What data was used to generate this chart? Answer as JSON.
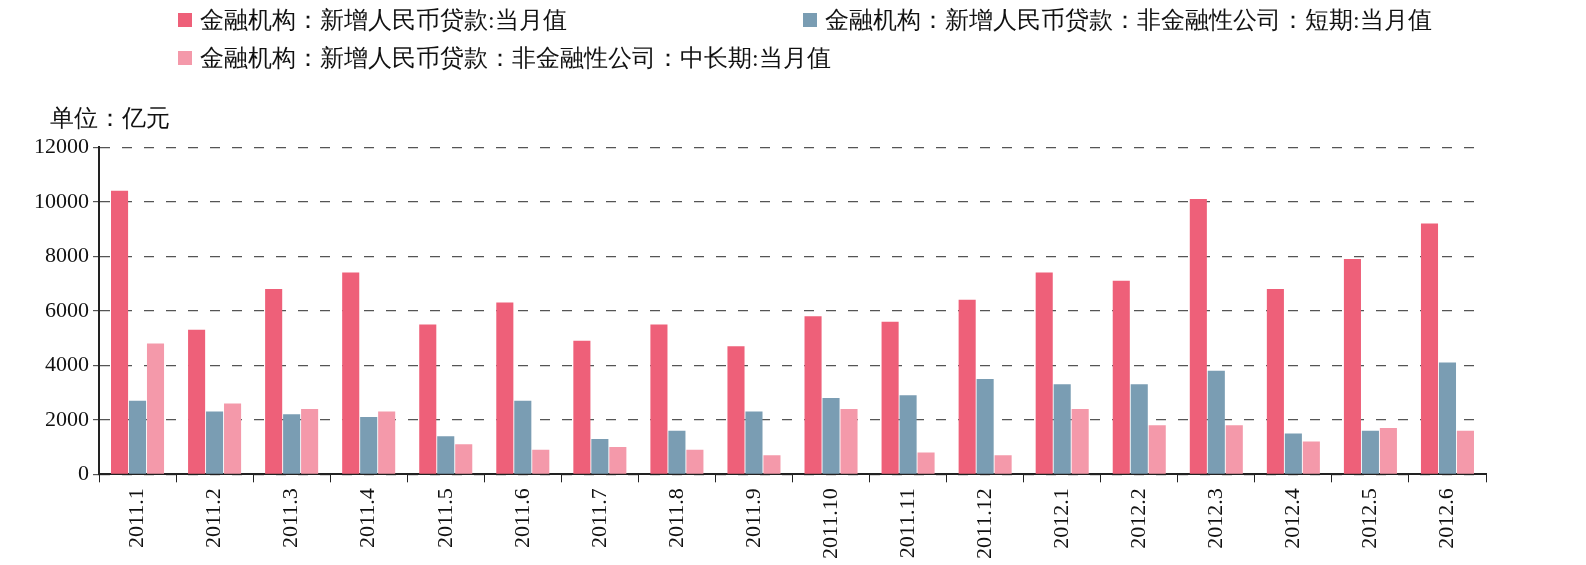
{
  "chart_data": {
    "type": "bar",
    "ylabel": "单位：亿元",
    "categories": [
      "2011.1",
      "2011.2",
      "2011.3",
      "2011.4",
      "2011.5",
      "2011.6",
      "2011.7",
      "2011.8",
      "2011.9",
      "2011.10",
      "2011.11",
      "2011.12",
      "2012.1",
      "2012.2",
      "2012.3",
      "2012.4",
      "2012.5",
      "2012.6"
    ],
    "series": [
      {
        "name": "金融机构：新增人民币贷款:当月值",
        "color": "#ee6079",
        "values": [
          10400,
          5300,
          6800,
          7400,
          5500,
          6300,
          4900,
          5500,
          4700,
          5800,
          5600,
          6400,
          7400,
          7100,
          10100,
          6800,
          7900,
          9200
        ]
      },
      {
        "name": "金融机构：新增人民币贷款：非金融性公司：短期:当月值",
        "color": "#7a9db3",
        "values": [
          2700,
          2300,
          2200,
          2100,
          1400,
          2700,
          1300,
          1600,
          2300,
          2800,
          2900,
          3500,
          3300,
          3300,
          3800,
          1500,
          1600,
          4100
        ]
      },
      {
        "name": "金融机构：新增人民币贷款：非金融性公司：中长期:当月值",
        "color": "#f499aa",
        "values": [
          4800,
          2600,
          2400,
          2300,
          1100,
          900,
          1000,
          900,
          700,
          2400,
          800,
          700,
          2400,
          1800,
          1800,
          1200,
          1700,
          1600
        ]
      }
    ],
    "ylim": [
      0,
      12000
    ],
    "yticks": [
      0,
      2000,
      4000,
      6000,
      8000,
      10000,
      12000
    ],
    "grid": "y",
    "legend": "top"
  }
}
